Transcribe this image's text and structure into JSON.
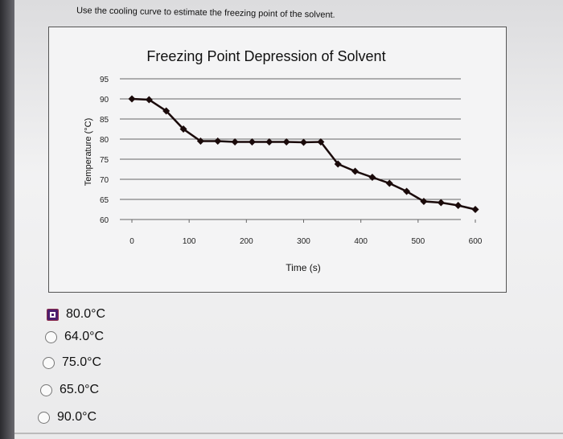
{
  "question": "Use the cooling curve to estimate the freezing point of the solvent.",
  "chart_data": {
    "type": "line",
    "title": "Freezing Point Depression of Solvent",
    "xlabel": "Time (s)",
    "ylabel": "Temperature (°C)",
    "xlim": [
      0,
      600
    ],
    "ylim": [
      60,
      95
    ],
    "xticks": [
      "0",
      "100",
      "200",
      "300",
      "400",
      "500",
      "600"
    ],
    "yticks": [
      "60",
      "65",
      "70",
      "75",
      "80",
      "85",
      "90",
      "95"
    ],
    "grid": true,
    "marker": "diamond",
    "color": "#1a0a0a",
    "x": [
      0,
      30,
      60,
      90,
      120,
      150,
      180,
      210,
      240,
      270,
      300,
      330,
      360,
      390,
      420,
      450,
      480,
      510,
      540,
      570,
      600
    ],
    "y": [
      90,
      89.8,
      87,
      82.5,
      79.5,
      79.5,
      79.3,
      79.3,
      79.3,
      79.3,
      79.2,
      79.3,
      73.8,
      72,
      70.5,
      69,
      67,
      64.5,
      64.2,
      63.5,
      62.5
    ]
  },
  "options": [
    {
      "label": "80.0°C",
      "selected": true
    },
    {
      "label": "64.0°C",
      "selected": false
    },
    {
      "label": "75.0°C",
      "selected": false
    },
    {
      "label": "65.0°C",
      "selected": false
    },
    {
      "label": "90.0°C",
      "selected": false
    }
  ],
  "colors": {
    "selected_radio": "#4b1d6f"
  }
}
